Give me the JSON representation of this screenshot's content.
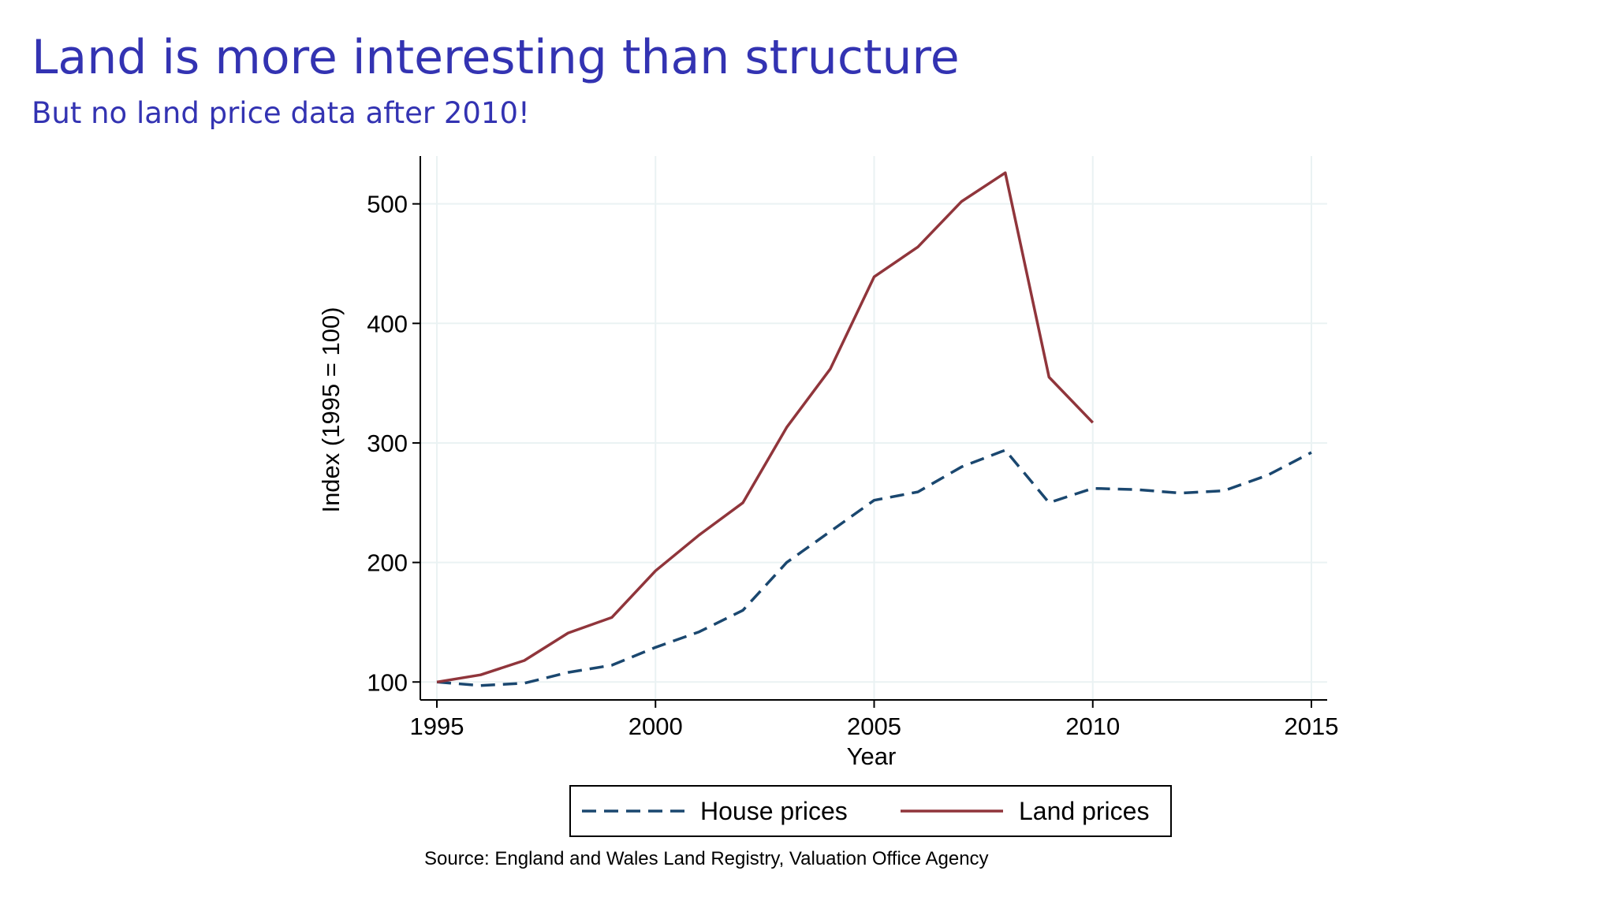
{
  "slide": {
    "title": "Land is more interesting than structure",
    "subtitle": "But no land price data after 2010!"
  },
  "chart_data": {
    "type": "line",
    "xlabel": "Year",
    "ylabel": "Index (1995 = 100)",
    "xlim": [
      1995,
      2015
    ],
    "ylim": [
      85,
      540
    ],
    "xticks": [
      1995,
      2000,
      2005,
      2010,
      2015
    ],
    "yticks": [
      100,
      200,
      300,
      400,
      500
    ],
    "grid": true,
    "legend_position": "bottom",
    "source_note": "Source: England and Wales Land Registry, Valuation Office Agency",
    "series": [
      {
        "name": "House prices",
        "color": "#1a476f",
        "dash": "dashed",
        "x": [
          1995,
          1996,
          1997,
          1998,
          1999,
          2000,
          2001,
          2002,
          2003,
          2004,
          2005,
          2006,
          2007,
          2008,
          2009,
          2010,
          2011,
          2012,
          2013,
          2014,
          2015
        ],
        "y": [
          100,
          97,
          99,
          108,
          114,
          129,
          142,
          160,
          200,
          226,
          252,
          259,
          280,
          294,
          250,
          262,
          261,
          258,
          260,
          273,
          292
        ]
      },
      {
        "name": "Land prices",
        "color": "#90353b",
        "dash": "solid",
        "x": [
          1995,
          1996,
          1997,
          1998,
          1999,
          2000,
          2001,
          2002,
          2003,
          2004,
          2005,
          2006,
          2007,
          2008,
          2009,
          2010
        ],
        "y": [
          100,
          106,
          118,
          141,
          154,
          193,
          223,
          250,
          313,
          362,
          439,
          464,
          502,
          526,
          355,
          317
        ]
      }
    ]
  }
}
